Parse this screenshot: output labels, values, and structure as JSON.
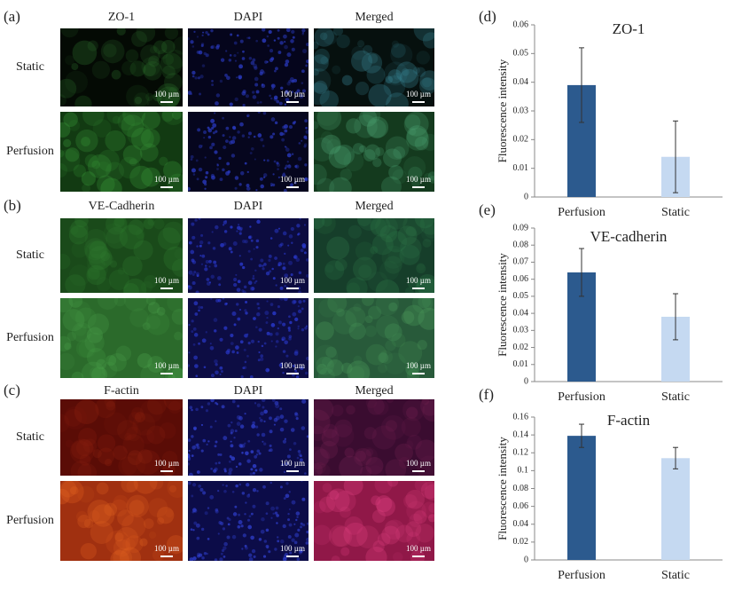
{
  "panels": [
    {
      "label": "(a)",
      "columns": [
        "ZO-1",
        "DAPI",
        "Merged"
      ],
      "rows": [
        "Static",
        "Perfusion"
      ],
      "scale_bar": "100 µm"
    },
    {
      "label": "(b)",
      "columns": [
        "VE-Cadherin",
        "DAPI",
        "Merged"
      ],
      "rows": [
        "Static",
        "Perfusion"
      ],
      "scale_bar": "100 µm"
    },
    {
      "label": "(c)",
      "columns": [
        "F-actin",
        "DAPI",
        "Merged"
      ],
      "rows": [
        "Static",
        "Perfusion"
      ],
      "scale_bar": "100 µm"
    }
  ],
  "chart_data": [
    {
      "type": "bar",
      "label": "(d)",
      "title": "ZO-1",
      "ylabel": "Fluorescence intensity",
      "categories": [
        "Perfusion",
        "Static"
      ],
      "values": [
        0.039,
        0.014
      ],
      "errors": [
        0.013,
        0.0125
      ],
      "colors": [
        "#2c5a8e",
        "#c5d9f1"
      ],
      "ylim": [
        0,
        0.06
      ],
      "yticks": [
        0,
        0.01,
        0.02,
        0.03,
        0.04,
        0.05,
        0.06
      ]
    },
    {
      "type": "bar",
      "label": "(e)",
      "title": "VE-cadherin",
      "ylabel": "Fluorescence intensity",
      "categories": [
        "Perfusion",
        "Static"
      ],
      "values": [
        0.064,
        0.038
      ],
      "errors": [
        0.014,
        0.0135
      ],
      "colors": [
        "#2c5a8e",
        "#c5d9f1"
      ],
      "ylim": [
        0,
        0.09
      ],
      "yticks": [
        0,
        0.01,
        0.02,
        0.03,
        0.04,
        0.05,
        0.06,
        0.07,
        0.08,
        0.09
      ]
    },
    {
      "type": "bar",
      "label": "(f)",
      "title": "F-actin",
      "ylabel": "Fluorescence intensity",
      "categories": [
        "Perfusion",
        "Static"
      ],
      "values": [
        0.139,
        0.114
      ],
      "errors": [
        0.013,
        0.012
      ],
      "colors": [
        "#2c5a8e",
        "#c5d9f1"
      ],
      "ylim": [
        0,
        0.16
      ],
      "yticks": [
        0,
        0.02,
        0.04,
        0.06,
        0.08,
        0.1,
        0.12,
        0.14,
        0.16
      ]
    }
  ]
}
